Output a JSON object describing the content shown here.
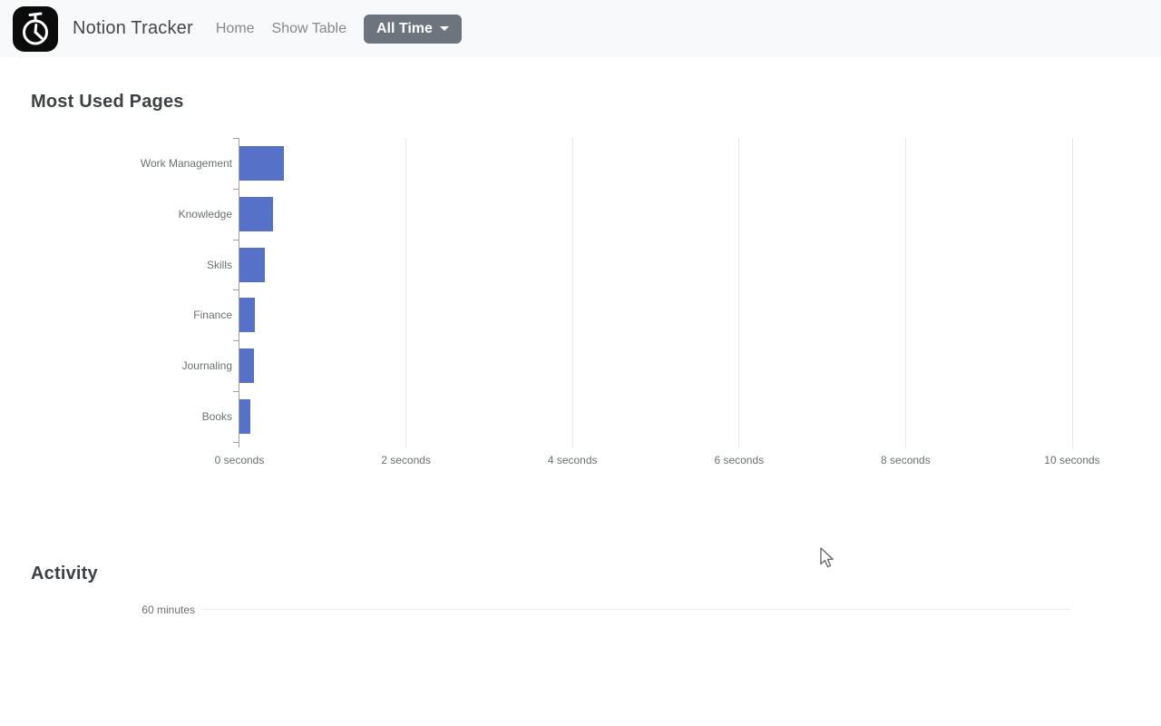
{
  "navbar": {
    "brand": "Notion Tracker",
    "logo_icon": "stopwatch-icon",
    "links": [
      "Home",
      "Show Table"
    ],
    "dropdown_label": "All Time"
  },
  "sections": {
    "most_used": {
      "title": "Most Used Pages"
    },
    "activity": {
      "title": "Activity",
      "visible_tick": "60 minutes"
    }
  },
  "chart_data": [
    {
      "type": "bar",
      "orientation": "horizontal",
      "title": "Most Used Pages",
      "categories": [
        "Work Management",
        "Knowledge",
        "Skills",
        "Finance",
        "Journaling",
        "Books"
      ],
      "values": [
        0.53,
        0.4,
        0.31,
        0.19,
        0.17,
        0.13
      ],
      "unit": "seconds",
      "x_tick_values": [
        0,
        2,
        4,
        6,
        8,
        10
      ],
      "x_tick_labels": [
        "0 seconds",
        "2 seconds",
        "4 seconds",
        "6 seconds",
        "8 seconds",
        "10 seconds"
      ],
      "xlim": [
        0,
        10
      ],
      "grid": true,
      "legend": false
    },
    {
      "type": "line",
      "title": "Activity",
      "y_tick_labels_visible": [
        "60 minutes"
      ],
      "grid": true,
      "note_visible_portion": "top edge only"
    }
  ],
  "colors": {
    "navbar_bg": "#f8f9fa",
    "button_bg": "#6c757d",
    "button_text": "#ffffff",
    "bar": "#5571c8",
    "gridline": "#e8e8e8",
    "axis": "#9aa0a6",
    "tick_text": "#6b6f73",
    "heading_text": "#3d4145"
  }
}
